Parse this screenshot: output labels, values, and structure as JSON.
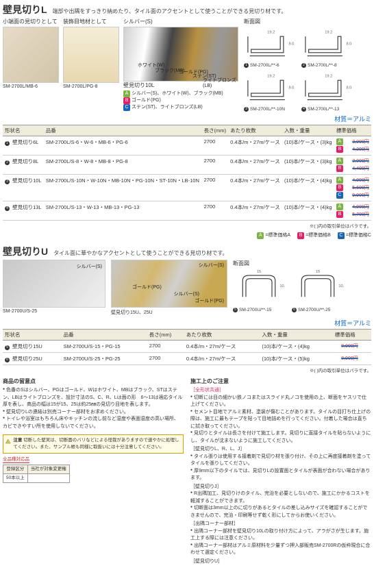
{
  "sectionL": {
    "title": "壁見切りL",
    "subtitle": "端部や出隅をすっきり納めたり、タイル面のアクセントとして使うことができる見切り材です。",
    "label_left": "小端面の見切りとして",
    "label_mid": "装飾目地材として",
    "img1_cap": "SM-2700L/MB-6",
    "img2_cap": "SM-2700L/PG-8",
    "color_title": "シルバー(S)",
    "color_labels": {
      "w": "ホワイト(W)",
      "mb": "ブラック(MB)",
      "pg": "ゴールド(PG)",
      "st": "ステン(ST)",
      "lb": "ライトブロンズ(LB)"
    },
    "color_cap": "壁見切り10L",
    "color_line_a": "シルバー(S)、ホワイト(W)、ブラック(MB)",
    "color_line_b": "ゴールド(PG)",
    "color_line_c": "ステン(ST)、ライトブロンズ(LB)",
    "diag_label": "断面図",
    "diagrams": [
      {
        "n": "1",
        "cap": "SM-2700L/**-6"
      },
      {
        "n": "2",
        "cap": "SM-2700L/**-8"
      },
      {
        "n": "3",
        "cap": "SM-2700L/**-10N"
      },
      {
        "n": "4",
        "cap": "SM-2700L/**-13"
      }
    ],
    "material": "材質＝アルミ",
    "table": {
      "headers": [
        "形状名",
        "品番",
        "長さ(mm)",
        "あたり枚数",
        "入数・重量",
        "標準価格"
      ],
      "rows": [
        {
          "n": "1",
          "name": "壁見切り6L",
          "code": "SM-2700L/S-6・W-6・MB-6・PG-6",
          "len": "2700",
          "per": "0.4本/m・27m/ケース",
          "pkg": "(10)本/ケース・(3)kg",
          "prices": [
            [
              "A",
              "3,000円"
            ],
            [
              "B",
              "4,300円"
            ]
          ]
        },
        {
          "n": "2",
          "name": "壁見切り8L",
          "code": "SM-2700L/S-8・W-8・MB-8・PG-8",
          "len": "2700",
          "per": "0.4本/m・27m/ケース",
          "pkg": "(10)本/ケース・(3)kg",
          "prices": [
            [
              "A",
              "3,000円"
            ],
            [
              "B",
              "4,400円"
            ]
          ]
        },
        {
          "n": "3",
          "name": "壁見切り10L",
          "code": "SM-2700L/S-10N・W-10N・MB-10N・PG-10N・ST-10N・LB-10N",
          "len": "2700",
          "per": "0.4本/m・27m/ケース",
          "pkg": "(10)本/ケース・(4)kg",
          "prices": [
            [
              "A",
              "4,800円"
            ],
            [
              "B",
              "5,600円"
            ],
            [
              "C",
              "9,900円"
            ]
          ]
        },
        {
          "n": "4",
          "name": "壁見切り13L",
          "code": "SM-2700L/S-13・W-13・MB-13・PG-13",
          "len": "2700",
          "per": "0.4本/m・27m/ケース",
          "pkg": "(10)本/ケース・(4)kg",
          "prices": [
            [
              "A",
              "4,900円"
            ],
            [
              "B",
              "5,700円"
            ]
          ]
        }
      ],
      "note": "※( )内の取引単位はバラです。"
    },
    "legend": {
      "a": "標準価格A",
      "b": "標準価格B",
      "c": "標準価格C"
    }
  },
  "sectionU": {
    "title": "壁見切りU",
    "subtitle": "タイル面に華やかなアクセントとして使うことができる見切り材です。",
    "img1_labels": {
      "s": "シルバー(S)"
    },
    "img2_labels": {
      "pg": "ゴールド(PG)",
      "s": "シルバー(S)",
      "pg2": "ゴールド(PG)"
    },
    "img1_cap": "SM-2700U/S-25",
    "img2_cap": "壁見切り15U、25U",
    "diag_label": "断面図",
    "diagrams": [
      {
        "n": "5",
        "cap": "SM-2700U/**-15"
      },
      {
        "n": "6",
        "cap": "SM-2700U/**-25"
      }
    ],
    "material": "材質＝アルミ",
    "table": {
      "headers": [
        "形状名",
        "品番",
        "長さ(mm)",
        "あたり枚数",
        "入数・重量",
        "標準価格"
      ],
      "rows": [
        {
          "n": "5",
          "name": "壁見切り15U",
          "code": "SM-2700U/S-15・PG-15",
          "len": "2700",
          "per": "0.4本/m・27m/ケース",
          "pkg": "(10)本/ケース・(4)kg",
          "prices": [
            [
              "",
              "8,000円"
            ]
          ]
        },
        {
          "n": "6",
          "name": "壁見切り25U",
          "code": "SM-2700U/S-25・PG-25",
          "len": "2700",
          "per": "0.4本/m・27m/ケース",
          "pkg": "(10)本/ケース・(5)kg",
          "prices": [
            [
              "",
              "8,900円"
            ]
          ]
        }
      ],
      "note": "※( )内の取引単位はバラです。"
    }
  },
  "bottomL": {
    "title": "商品の留意点",
    "items": [
      "色番のSはシルバー、PGはゴールド、Wはホワイト、MBはブラック、STはステン、LBはライトブロンズを、設計寸法のS、C、R、Lは面の形　6〜13は適応タイル厚を表し、商品の幅は15が15、25は約25㎜の見切り目地を表します。",
      "壁見切りLの連結は別売コーナー部材をお求めください。",
      "トイレや浴室はもちろん床やキッチンの流し前など湿度や表面湿度の高い場所、カビできやすい所を使用しないでください。"
    ]
  },
  "bottomR": {
    "title": "施工上のご注意",
    "sub": "［全形状共通］",
    "items": [
      "切断には目の細かい鉄ノコまたはスライド丸ノコを使用の上、断面をヤスリで仕上げてください。",
      "セメント目地でアルミ素材、塗装が傷むことがあります。タイルの目打ち仕上げの際は、施工に最もテープを貼って目地詰めを行ってください。付着した場合は直ちに拭き取ってください。",
      "見切りとタイルは長さを付けて施工します。見切りに直接タイルを貼らないようにし、タイルが沈まないように施工してください。",
      "［壁見切りL、R、L、J］",
      "タイル張りは使用する接着剤で見切り材を張り付け、その上に再度接着剤を塗ってタイルを張りしてください。",
      "厚9mm以下のタイルでは、見切りLの設置面とタイルが表面が合わない場合があります。",
      "［壁見切りJ］",
      "R出隅加工、見切りけのタイル、完治を必要としないので、施工にかかるコストを軽減することができます。",
      "切断面は3mm以上のに切りがあるとタイルの差し込みサイズを確認することができませんので、完治・印刷等せず乾く形にしてからお使いください。",
      "［出隅コーナー部材］",
      "出隅コーナー部材を壁見切り10Lの取り付け方によって、アラがさが生じます。施工上する際には注意ください。",
      "出隅コーナー部材はアルミ原材料を少量ずつ押入部販売SM-2700Rの仮枠現合に合わせて選定ください。",
      "［壁見切りU］"
    ]
  },
  "warning": {
    "label": "注意",
    "text": "切断した堅実は、切断面のバリなどによる怪我がありますので速やかに処理してください。また、サンプル帳も同様に取扱いには十分注意してください。"
  },
  "sample": {
    "title": "全品種対応品",
    "h1": "登録区分",
    "h2": "当社が対象変更権",
    "c1": "50本以上",
    "c2": ""
  }
}
